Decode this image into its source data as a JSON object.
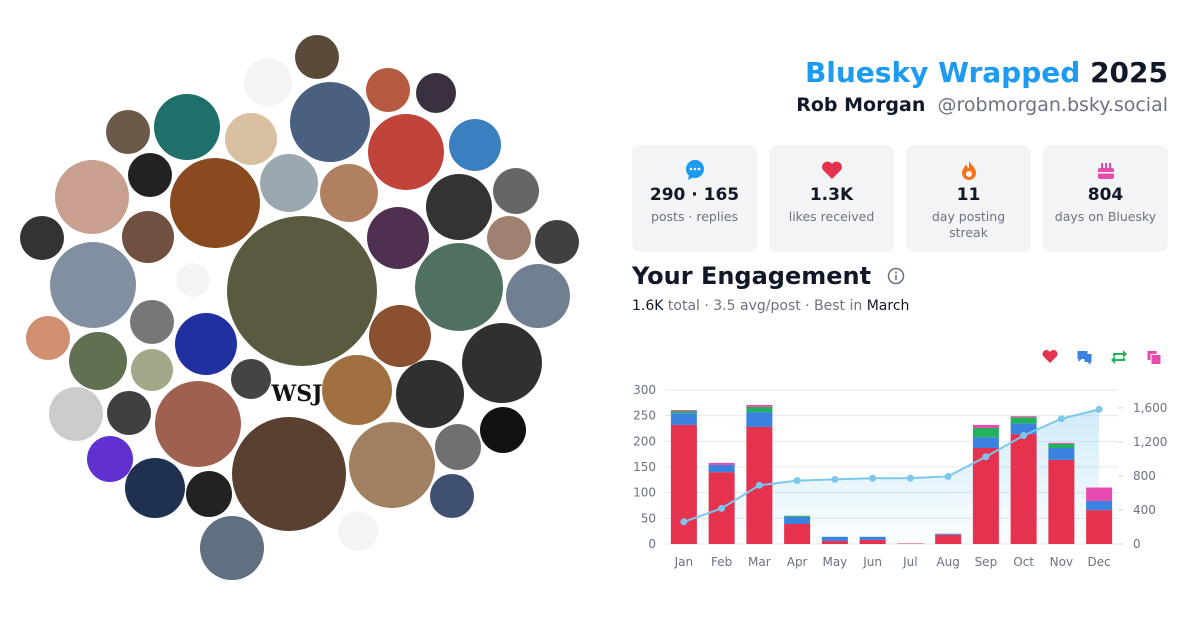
{
  "header": {
    "title": "Bluesky Wrapped",
    "year": "2025",
    "name": "Rob Morgan",
    "handle": "@robmorgan.bsky.social"
  },
  "avatar_texts": [
    "WSJ"
  ],
  "stats": [
    {
      "value": "290 · 165",
      "label": "posts · replies"
    },
    {
      "value": "1.3K",
      "label": "likes received"
    },
    {
      "value": "11",
      "label": "day posting streak"
    },
    {
      "value": "804",
      "label": "days on Bluesky"
    }
  ],
  "engagement": {
    "title": "Your Engagement",
    "total": "1.6K",
    "middle": "total · 3.5 avg/post · Best in",
    "best": "March"
  },
  "chart_data": {
    "type": "bar",
    "categories": [
      "Jan",
      "Feb",
      "Mar",
      "Apr",
      "May",
      "Jun",
      "Jul",
      "Aug",
      "Sep",
      "Oct",
      "Nov",
      "Dec"
    ],
    "series": [
      {
        "color": "#e5334f",
        "values": [
          232,
          140,
          228,
          39,
          6,
          8,
          1,
          18,
          187,
          214,
          164,
          66
        ]
      },
      {
        "color": "#3b82e0",
        "values": [
          23,
          14,
          29,
          14,
          8,
          6,
          0,
          2,
          21,
          21,
          23,
          18
        ]
      },
      {
        "color": "#22b35a",
        "values": [
          4,
          0,
          10,
          2,
          0,
          0,
          0,
          0,
          18,
          12,
          8,
          0
        ]
      },
      {
        "color": "#e84bb0",
        "values": [
          2,
          4,
          4,
          0,
          0,
          0,
          0,
          0,
          6,
          2,
          2,
          26
        ]
      },
      {
        "type": "line",
        "axis": "y2",
        "color": "#7cc8ec",
        "values": [
          261,
          419,
          690,
          745,
          759,
          773,
          774,
          794,
          1026,
          1275,
          1472,
          1582
        ]
      }
    ],
    "ylim": [
      0,
      300
    ],
    "yticks": [
      0,
      50,
      100,
      150,
      200,
      250,
      300
    ],
    "y2lim": [
      0,
      1810
    ],
    "y2ticks": [
      0,
      400,
      800,
      {
        "value": 1200,
        "label": "1,200"
      },
      {
        "value": 1600,
        "label": "1,600"
      }
    ],
    "grid": true
  }
}
